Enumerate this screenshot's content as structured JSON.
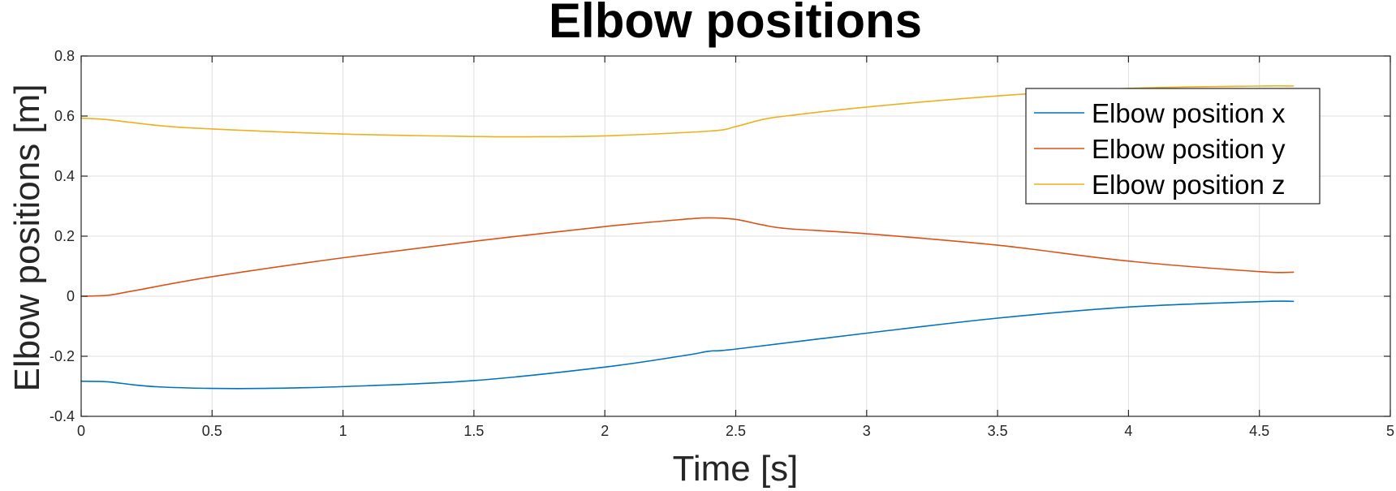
{
  "chart_data": {
    "type": "line",
    "title": "Elbow positions",
    "xlabel": "Time [s]",
    "ylabel": "Elbow positions [m]",
    "xlim": [
      0,
      5
    ],
    "ylim": [
      -0.4,
      0.8
    ],
    "xticks": [
      0,
      0.5,
      1,
      1.5,
      2,
      2.5,
      3,
      3.5,
      4,
      4.5,
      5
    ],
    "xtick_labels": [
      "0",
      "0.5",
      "1",
      "1.5",
      "2",
      "2.5",
      "3",
      "3.5",
      "4",
      "4.5",
      "5"
    ],
    "yticks": [
      -0.4,
      -0.2,
      0,
      0.2,
      0.4,
      0.6,
      0.8
    ],
    "ytick_labels": [
      "-0.4",
      "-0.2",
      "0",
      "0.2",
      "0.4",
      "0.6",
      "0.8"
    ],
    "grid": true,
    "legend_position": "top-right",
    "series": [
      {
        "name": "Elbow position x",
        "color": "#0072BD",
        "x": [
          0,
          0.1,
          0.2,
          0.3,
          0.5,
          0.7,
          1.0,
          1.5,
          2.0,
          2.3,
          2.4,
          2.5,
          3.0,
          3.5,
          4.0,
          4.5,
          4.63
        ],
        "y": [
          -0.283,
          -0.285,
          -0.295,
          -0.302,
          -0.307,
          -0.307,
          -0.301,
          -0.281,
          -0.236,
          -0.198,
          -0.183,
          -0.176,
          -0.123,
          -0.073,
          -0.036,
          -0.018,
          -0.017
        ]
      },
      {
        "name": "Elbow position y",
        "color": "#D95319",
        "x": [
          0,
          0.1,
          0.2,
          0.5,
          1.0,
          1.5,
          2.0,
          2.3,
          2.4,
          2.5,
          2.6,
          2.7,
          3.0,
          3.5,
          4.0,
          4.5,
          4.63
        ],
        "y": [
          0.0,
          0.003,
          0.018,
          0.065,
          0.128,
          0.183,
          0.232,
          0.256,
          0.261,
          0.256,
          0.238,
          0.225,
          0.208,
          0.17,
          0.117,
          0.082,
          0.08
        ]
      },
      {
        "name": "Elbow position z",
        "color": "#EDB120",
        "x": [
          0,
          0.1,
          0.3,
          0.5,
          1.0,
          1.5,
          1.7,
          2.0,
          2.4,
          2.5,
          2.6,
          2.7,
          3.0,
          3.5,
          4.0,
          4.5,
          4.63
        ],
        "y": [
          0.593,
          0.588,
          0.568,
          0.557,
          0.54,
          0.532,
          0.531,
          0.534,
          0.55,
          0.565,
          0.588,
          0.601,
          0.63,
          0.667,
          0.692,
          0.7,
          0.7
        ]
      }
    ]
  }
}
